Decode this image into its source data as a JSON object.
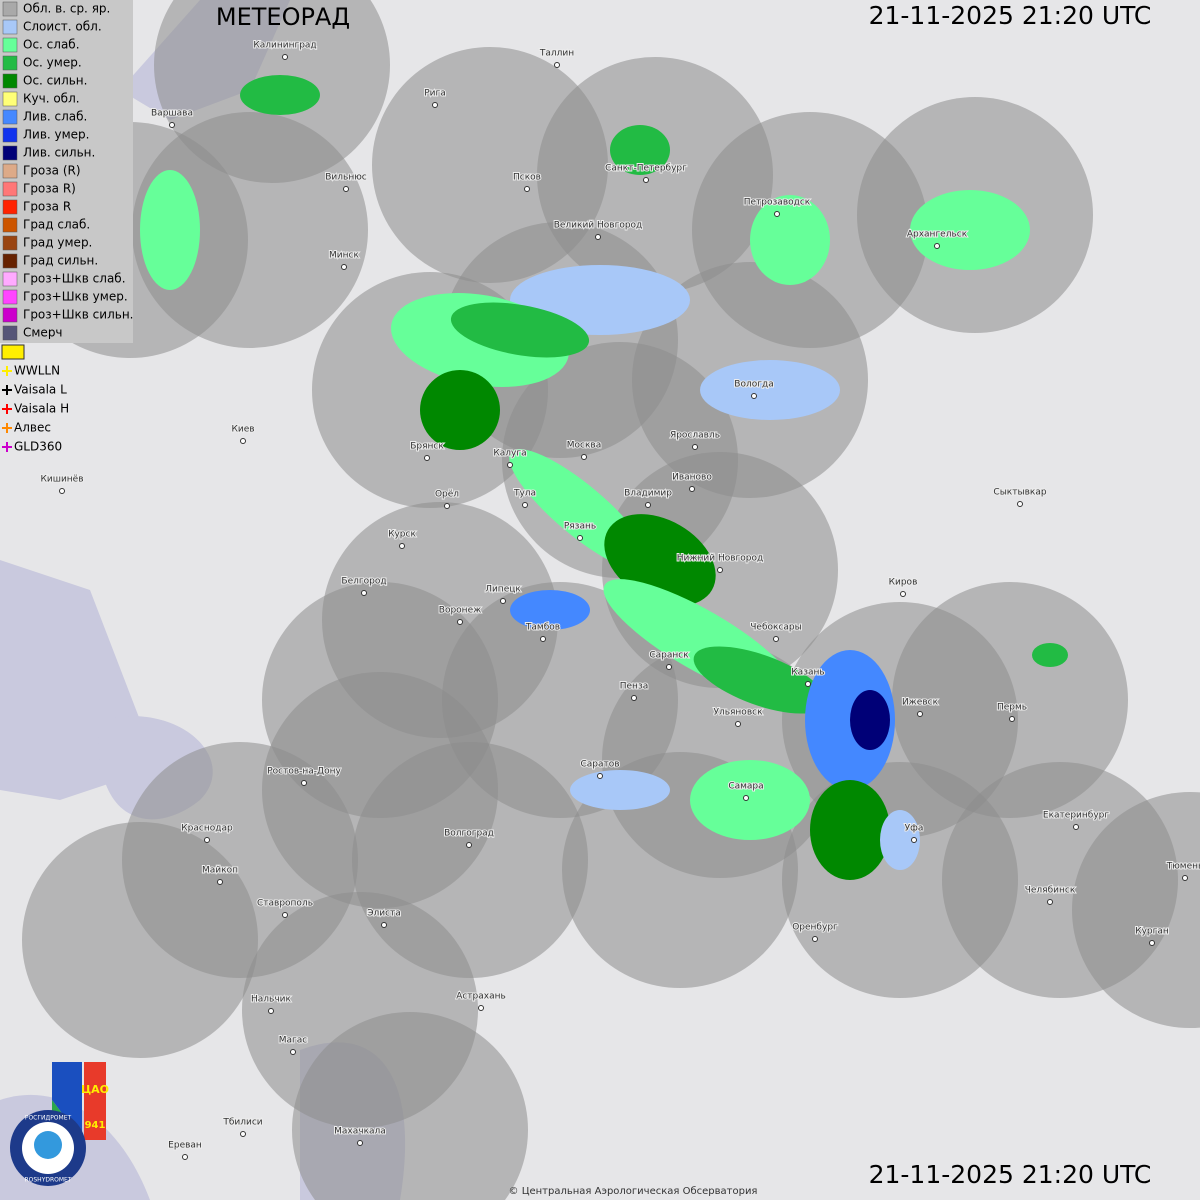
{
  "header": {
    "title": "МЕТЕОРАД",
    "timestamp_top": "21-11-2025  21:20 UTC",
    "timestamp_bottom": "21-11-2025  21:20 UTC"
  },
  "legend": {
    "items": [
      {
        "label": "Обл. в. ср. яр.",
        "color": "#a9a9a9"
      },
      {
        "label": "Слоист. обл.",
        "color": "#a8c8f8"
      },
      {
        "label": "Ос. слаб.",
        "color": "#66ff99"
      },
      {
        "label": "Ос. умер.",
        "color": "#22bb44"
      },
      {
        "label": "Ос. сильн.",
        "color": "#008800"
      },
      {
        "label": "Куч. обл.",
        "color": "#ffff77"
      },
      {
        "label": "Лив. слаб.",
        "color": "#4488ff"
      },
      {
        "label": "Лив. умер.",
        "color": "#1133ee"
      },
      {
        "label": "Лив. сильн.",
        "color": "#000077"
      },
      {
        "label": "Гроза (R)",
        "color": "#ddaa88"
      },
      {
        "label": "Гроза R)",
        "color": "#ff7777"
      },
      {
        "label": "Гроза R",
        "color": "#ff2200"
      },
      {
        "label": "Град слаб.",
        "color": "#cc5500"
      },
      {
        "label": "Град умер.",
        "color": "#994411"
      },
      {
        "label": "Град сильн.",
        "color": "#662200"
      },
      {
        "label": "Гроз+Шкв слаб.",
        "color": "#ffaaff"
      },
      {
        "label": "Гроз+Шкв умер.",
        "color": "#ff44ff"
      },
      {
        "label": "Гроз+Шкв сильн.",
        "color": "#cc00cc"
      },
      {
        "label": "Смерч",
        "color": "#555577"
      }
    ],
    "lightning": [
      {
        "label": "WWLLN",
        "color": "#ffee00"
      },
      {
        "label": "Vaisala L",
        "color": "#000000"
      },
      {
        "label": "Vaisala H",
        "color": "#ff0000"
      },
      {
        "label": "Алвес",
        "color": "#ff8800"
      },
      {
        "label": "GLD360",
        "color": "#cc00cc"
      }
    ]
  },
  "cities": [
    "Калининград",
    "Таллин",
    "Рига",
    "Варшава",
    "Вильнюс",
    "Псков",
    "Санкт-Петербург",
    "Петрозаводск",
    "Архангельск",
    "Великий Новгород",
    "Минск",
    "Вологда",
    "Киев",
    "Брянск",
    "Калуга",
    "Москва",
    "Ярославль",
    "Иваново",
    "Кишинёв",
    "Тула",
    "Владимир",
    "Орёл",
    "Сыктывкар",
    "Курск",
    "Рязань",
    "Нижний Новгород",
    "Белгород",
    "Киров",
    "Липецк",
    "Воронеж",
    "Тамбов",
    "Чебоксары",
    "Саранск",
    "Казань",
    "Пенза",
    "Ижевск",
    "Пермь",
    "Ульяновск",
    "Саратов",
    "Ростов-на-Дону",
    "Самара",
    "Екатеринбург",
    "Краснодар",
    "Уфа",
    "Волгоград",
    "Тюмень",
    "Майкоп",
    "Челябинск",
    "Ставрополь",
    "Элиста",
    "Оренбург",
    "Курган",
    "Нальчик",
    "Астрахань",
    "Магас",
    "Тбилиси",
    "Махачкала",
    "Ереван"
  ],
  "logo": {
    "org": "ЦАО",
    "code": "941",
    "ring_top": "РОСГИДРОМЕТ",
    "ring_bottom": "ROSHYDROMET"
  },
  "footer": {
    "copyright": "© Центральная Аэрологическая Обсерватория"
  }
}
